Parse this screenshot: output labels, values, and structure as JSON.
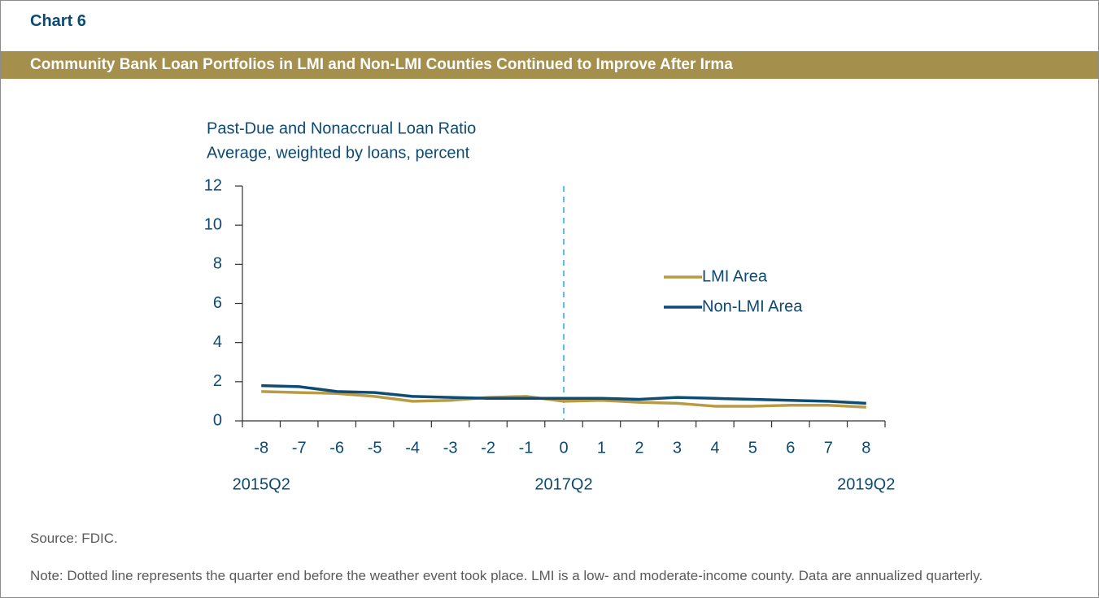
{
  "header": {
    "label": "Chart 6",
    "title": "Community Bank Loan Portfolios in LMI and Non-LMI Counties Continued to Improve After Irma"
  },
  "chart_data": {
    "type": "line",
    "y_title": [
      "Past-Due and Nonaccrual Loan Ratio",
      "Average, weighted by loans, percent"
    ],
    "categories": [
      "-8",
      "-7",
      "-6",
      "-5",
      "-4",
      "-3",
      "-2",
      "-1",
      "0",
      "1",
      "2",
      "3",
      "4",
      "5",
      "6",
      "7",
      "8"
    ],
    "period_labels": [
      "2015Q2",
      null,
      null,
      null,
      null,
      null,
      null,
      null,
      "2017Q2",
      null,
      null,
      null,
      null,
      null,
      null,
      null,
      "2019Q2"
    ],
    "event_line_at": "0",
    "series": [
      {
        "name": "LMI Area",
        "color": "#b99a45",
        "values": [
          1.5,
          1.45,
          1.4,
          1.25,
          1.0,
          1.05,
          1.2,
          1.25,
          1.0,
          1.05,
          0.95,
          0.9,
          0.75,
          0.75,
          0.8,
          0.8,
          0.7
        ]
      },
      {
        "name": "Non-LMI Area",
        "color": "#0f4c74",
        "values": [
          1.8,
          1.75,
          1.5,
          1.45,
          1.25,
          1.2,
          1.15,
          1.15,
          1.15,
          1.15,
          1.1,
          1.2,
          1.15,
          1.1,
          1.05,
          1.0,
          0.9
        ]
      }
    ],
    "ylim": [
      0,
      12
    ],
    "yticks": [
      0,
      2,
      4,
      6,
      8,
      10,
      12
    ]
  },
  "footer": {
    "source": "Source: FDIC.",
    "note": "Note: Dotted line represents the quarter end before the weather event took place. LMI is a low- and moderate-income county. Data are annualized quarterly."
  }
}
